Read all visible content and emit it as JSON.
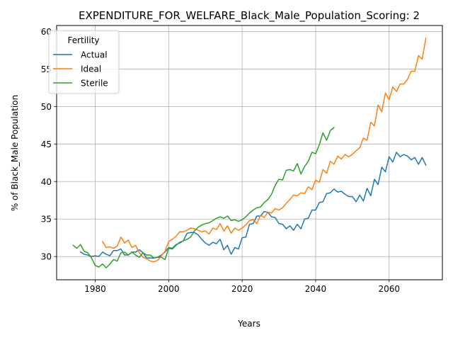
{
  "chart_data": {
    "type": "line",
    "title": "EXPENDITURE_FOR_WELFARE_Black_Male_Population_Scoring: 2",
    "xlabel": "Years",
    "ylabel": "% of Black_Male Population",
    "xlim": [
      1969.5,
      2074.5
    ],
    "ylim": [
      26.9,
      60.8
    ],
    "xticks": [
      1980,
      2000,
      2020,
      2040,
      2060
    ],
    "yticks": [
      30,
      35,
      40,
      45,
      50,
      55,
      60
    ],
    "grid": true,
    "legend": {
      "title": "Fertility",
      "position": "top-left"
    },
    "series": [
      {
        "name": "Actual",
        "color": "#1f77b4",
        "x": [
          1976,
          1977,
          1978,
          1979,
          1980,
          1981,
          1982,
          1983,
          1984,
          1985,
          1986,
          1987,
          1988,
          1989,
          1990,
          1991,
          1992,
          1993,
          1994,
          1995,
          1996,
          1997,
          1998,
          1999,
          2000,
          2001,
          2002,
          2003,
          2004,
          2005,
          2006,
          2007,
          2008,
          2009,
          2010,
          2011,
          2012,
          2013,
          2014,
          2015,
          2016,
          2017,
          2018,
          2019,
          2020,
          2021,
          2022,
          2023,
          2024,
          2025,
          2026,
          2027,
          2028,
          2029,
          2030,
          2031,
          2032,
          2033,
          2034,
          2035,
          2036,
          2037,
          2038,
          2039,
          2040,
          2041,
          2042,
          2043,
          2044,
          2045,
          2046,
          2047,
          2048,
          2049,
          2050,
          2051,
          2052,
          2053,
          2054,
          2055,
          2056,
          2057,
          2058,
          2059,
          2060,
          2061,
          2062,
          2063,
          2064,
          2065,
          2066,
          2067,
          2068,
          2069,
          2070
        ],
        "y": [
          30.6,
          30.3,
          30.2,
          30.0,
          30.1,
          30.0,
          30.6,
          30.3,
          30.1,
          30.8,
          30.8,
          31.0,
          30.2,
          30.2,
          30.6,
          30.6,
          30.9,
          30.5,
          29.8,
          29.8,
          29.8,
          29.9,
          30.2,
          30.6,
          31.2,
          31.1,
          31.6,
          31.8,
          32.1,
          33.1,
          33.2,
          33.2,
          32.9,
          32.3,
          31.8,
          31.5,
          31.9,
          31.7,
          32.3,
          30.9,
          31.5,
          30.3,
          31.2,
          31.0,
          32.5,
          32.6,
          34.3,
          34.4,
          35.4,
          35.4,
          36.0,
          35.9,
          35.3,
          35.2,
          34.4,
          34.3,
          33.7,
          34.1,
          33.5,
          34.3,
          33.7,
          35.0,
          35.1,
          36.2,
          36.2,
          37.2,
          37.3,
          38.4,
          38.5,
          39.0,
          38.6,
          38.7,
          38.3,
          38.0,
          38.0,
          37.3,
          38.2,
          37.4,
          39.1,
          38.1,
          40.3,
          39.6,
          41.9,
          41.3,
          43.3,
          42.6,
          43.9,
          43.3,
          43.6,
          43.4,
          42.9,
          43.2,
          42.3,
          43.2,
          42.2
        ]
      },
      {
        "name": "Ideal",
        "color": "#ff7f0e",
        "x": [
          1982,
          1983,
          1984,
          1985,
          1986,
          1987,
          1988,
          1989,
          1990,
          1991,
          1992,
          1993,
          1994,
          1995,
          1996,
          1997,
          1998,
          1999,
          2000,
          2001,
          2002,
          2003,
          2004,
          2005,
          2006,
          2007,
          2008,
          2009,
          2010,
          2011,
          2012,
          2013,
          2014,
          2015,
          2016,
          2017,
          2018,
          2019,
          2020,
          2021,
          2022,
          2023,
          2024,
          2025,
          2026,
          2027,
          2028,
          2029,
          2030,
          2031,
          2032,
          2033,
          2034,
          2035,
          2036,
          2037,
          2038,
          2039,
          2040,
          2041,
          2042,
          2043,
          2044,
          2045,
          2046,
          2047,
          2048,
          2049,
          2050,
          2051,
          2052,
          2053,
          2054,
          2055,
          2056,
          2057,
          2058,
          2059,
          2060,
          2061,
          2062,
          2063,
          2064,
          2065,
          2066,
          2067,
          2068,
          2069,
          2070
        ],
        "y": [
          32.0,
          31.2,
          31.3,
          31.1,
          31.4,
          32.6,
          31.8,
          32.2,
          31.2,
          31.5,
          30.5,
          29.9,
          29.7,
          29.4,
          29.3,
          29.5,
          30.1,
          30.7,
          32.0,
          32.3,
          32.7,
          33.3,
          33.3,
          33.5,
          33.8,
          33.7,
          33.5,
          33.3,
          33.4,
          33.0,
          33.8,
          33.6,
          34.4,
          33.4,
          34.1,
          33.1,
          33.8,
          33.5,
          33.8,
          34.2,
          34.8,
          34.9,
          34.4,
          35.5,
          35.2,
          35.9,
          35.8,
          36.4,
          36.2,
          36.5,
          37.1,
          37.6,
          38.2,
          38.1,
          38.5,
          38.4,
          39.3,
          38.9,
          40.2,
          39.9,
          41.6,
          41.1,
          42.7,
          42.3,
          43.4,
          43.0,
          43.6,
          43.3,
          43.6,
          44.1,
          44.5,
          45.8,
          45.5,
          47.9,
          47.4,
          50.2,
          49.3,
          51.8,
          50.9,
          52.6,
          52.0,
          53.0,
          53.0,
          53.6,
          54.7,
          54.7,
          56.8,
          56.3,
          59.1
        ]
      },
      {
        "name": "Sterile",
        "color": "#2ca02c",
        "x": [
          1974,
          1975,
          1976,
          1977,
          1978,
          1979,
          1980,
          1981,
          1982,
          1983,
          1984,
          1985,
          1986,
          1987,
          1988,
          1989,
          1990,
          1991,
          1992,
          1993,
          1994,
          1995,
          1996,
          1997,
          1998,
          1999,
          2000,
          2001,
          2002,
          2003,
          2004,
          2005,
          2006,
          2007,
          2008,
          2009,
          2010,
          2011,
          2012,
          2013,
          2014,
          2015,
          2016,
          2017,
          2018,
          2019,
          2020,
          2021,
          2022,
          2023,
          2024,
          2025,
          2026,
          2027,
          2028,
          2029,
          2030,
          2031,
          2032,
          2033,
          2034,
          2035,
          2036,
          2037,
          2038,
          2039,
          2040,
          2041,
          2042,
          2043,
          2044,
          2045
        ],
        "y": [
          31.5,
          31.1,
          31.6,
          30.7,
          30.5,
          29.8,
          28.8,
          28.6,
          29.0,
          28.5,
          29.0,
          29.6,
          29.4,
          30.5,
          30.6,
          30.2,
          30.6,
          30.2,
          29.9,
          30.5,
          30.2,
          30.2,
          29.8,
          29.9,
          29.9,
          29.6,
          31.1,
          31.0,
          31.5,
          31.9,
          32.1,
          32.3,
          32.6,
          33.4,
          33.9,
          34.2,
          34.4,
          34.5,
          34.8,
          35.1,
          35.3,
          35.1,
          35.4,
          34.8,
          34.9,
          34.7,
          34.9,
          35.3,
          35.8,
          36.2,
          36.5,
          36.6,
          37.2,
          37.6,
          38.3,
          39.5,
          40.3,
          40.2,
          41.5,
          41.6,
          41.4,
          42.4,
          41.0,
          42.0,
          42.7,
          43.9,
          43.7,
          44.9,
          46.5,
          45.5,
          46.8,
          47.2
        ]
      }
    ]
  }
}
